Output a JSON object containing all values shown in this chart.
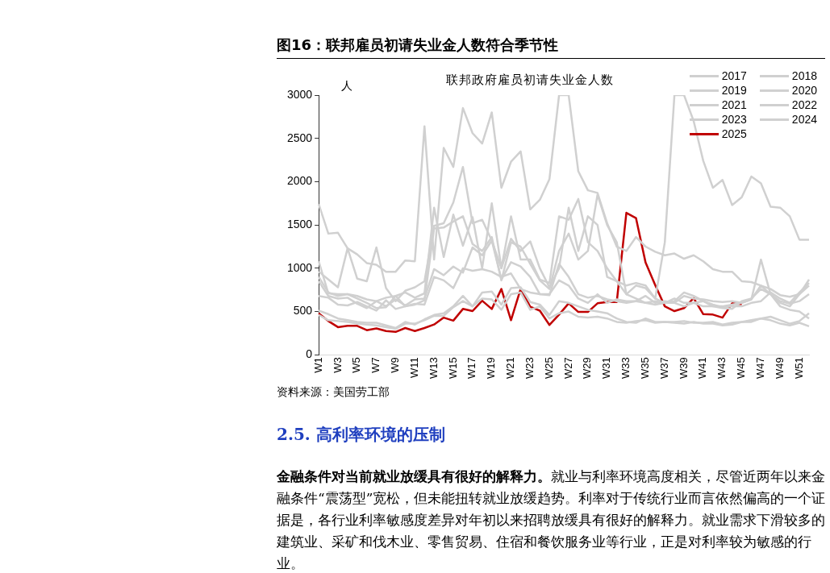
{
  "chart_data": {
    "type": "line",
    "title": "图16：联邦雇员初请失业金人数符合季节性",
    "subtitle": "联邦政府雇员初请失业金人数",
    "ylabel": "人",
    "categories": [
      "W1",
      null,
      "W3",
      null,
      "W5",
      null,
      "W7",
      null,
      "W9",
      null,
      "W11",
      null,
      "W13",
      null,
      "W15",
      null,
      "W17",
      null,
      "W19",
      null,
      "W21",
      null,
      "W23",
      null,
      "W25",
      null,
      "W27",
      null,
      "W29",
      null,
      "W31",
      null,
      "W33",
      null,
      "W35",
      null,
      "W37",
      null,
      "W39",
      null,
      "W41",
      null,
      "W43",
      null,
      "W45",
      null,
      "W47",
      null,
      "W49",
      null,
      "W51",
      null
    ],
    "ylim": [
      0,
      3000
    ],
    "yticks": [
      0,
      500,
      1000,
      1500,
      2000,
      2500,
      3000
    ],
    "grid": false,
    "legend": "top right",
    "marker": "none",
    "line_style": "solid",
    "series": [
      {
        "name": "2017",
        "color": "#d0d0d0",
        "values": [
          1740,
          1400,
          1410,
          1230,
          1160,
          1060,
          1040,
          960,
          960,
          1090,
          1080,
          2640,
          1100,
          2390,
          2170,
          2850,
          2560,
          2440,
          2800,
          1930,
          2230,
          2350,
          1680,
          1790,
          2030,
          3000,
          3000,
          2120,
          1900,
          1870,
          1520,
          1250,
          1200,
          1360,
          1250,
          1190,
          1150,
          1170,
          1110,
          1150,
          1080,
          990,
          960,
          960,
          850,
          840,
          800,
          760,
          690,
          670,
          700,
          800
        ]
      },
      {
        "name": "2018",
        "color": "#d0d0d0",
        "values": [
          1080,
          710,
          700,
          700,
          680,
          640,
          620,
          660,
          680,
          720,
          660,
          710,
          1700,
          1130,
          1620,
          1260,
          1590,
          1000,
          1750,
          1000,
          1600,
          1100,
          1100,
          870,
          830,
          1600,
          1560,
          1800,
          1300,
          1200,
          1000,
          850,
          700,
          800,
          770,
          650,
          1300,
          3000,
          3000,
          2700,
          2240,
          1930,
          2020,
          1730,
          1820,
          2060,
          1980,
          1710,
          1700,
          1600,
          1330,
          1330
        ]
      },
      {
        "name": "2019",
        "color": "#d0d0d0",
        "values": [
          960,
          870,
          780,
          1230,
          880,
          850,
          1240,
          770,
          620,
          740,
          780,
          850,
          1490,
          1520,
          1760,
          2170,
          1520,
          1560,
          1320,
          1000,
          1340,
          1200,
          1310,
          1000,
          780,
          1000,
          1700,
          1200,
          1600,
          1500,
          900,
          850,
          800,
          830,
          800,
          650,
          600,
          650,
          600,
          600,
          620,
          580,
          550,
          560,
          560,
          600,
          620,
          720,
          650,
          600,
          720,
          830
        ]
      },
      {
        "name": "2020",
        "color": "#d0d0d0",
        "values": [
          900,
          720,
          680,
          700,
          650,
          600,
          540,
          550,
          680,
          560,
          580,
          630,
          1460,
          1470,
          1540,
          1600,
          1280,
          1200,
          1360,
          860,
          1300,
          1250,
          1050,
          860,
          760,
          1200,
          1400,
          1100,
          1200,
          1850,
          1500,
          1300,
          700,
          650,
          600,
          620,
          600,
          600,
          560,
          600,
          560,
          560,
          540,
          530,
          620,
          650,
          760,
          700,
          560,
          520,
          500,
          420
        ]
      },
      {
        "name": "2021",
        "color": "#d0d0d0",
        "values": [
          850,
          680,
          650,
          660,
          590,
          540,
          620,
          560,
          640,
          570,
          640,
          650,
          990,
          920,
          1020,
          950,
          1240,
          1150,
          1320,
          870,
          1070,
          1020,
          900,
          700,
          690,
          1050,
          900,
          700,
          660,
          680,
          640,
          620,
          600,
          620,
          680,
          600,
          620,
          600,
          680,
          650,
          640,
          620,
          610,
          620,
          600,
          640,
          1100,
          700,
          620,
          590,
          620,
          700
        ]
      },
      {
        "name": "2022",
        "color": "#d0d0d0",
        "values": [
          680,
          660,
          580,
          570,
          610,
          560,
          510,
          630,
          530,
          560,
          590,
          580,
          900,
          860,
          770,
          1000,
          970,
          990,
          960,
          900,
          940,
          760,
          720,
          700,
          700,
          860,
          800,
          650,
          600,
          700,
          600,
          640,
          620,
          620,
          600,
          580,
          600,
          620,
          720,
          680,
          620,
          560,
          560,
          580,
          600,
          640,
          800,
          700,
          600,
          560,
          700,
          870
        ]
      },
      {
        "name": "2023",
        "color": "#d0d0d0",
        "values": [
          510,
          470,
          420,
          400,
          380,
          370,
          370,
          340,
          310,
          380,
          350,
          410,
          460,
          480,
          560,
          680,
          560,
          720,
          730,
          580,
          770,
          780,
          610,
          580,
          460,
          620,
          600,
          560,
          520,
          500,
          480,
          420,
          380,
          370,
          420,
          380,
          380,
          380,
          390,
          370,
          370,
          380,
          350,
          370,
          380,
          400,
          420,
          440,
          400,
          360,
          390,
          480
        ]
      },
      {
        "name": "2024",
        "color": "#d0d0d0",
        "values": [
          460,
          400,
          390,
          380,
          360,
          350,
          340,
          320,
          300,
          360,
          360,
          400,
          450,
          450,
          550,
          620,
          560,
          650,
          640,
          520,
          700,
          720,
          520,
          560,
          420,
          480,
          500,
          440,
          430,
          440,
          420,
          380,
          370,
          390,
          400,
          370,
          380,
          370,
          360,
          380,
          360,
          360,
          340,
          350,
          380,
          380,
          420,
          400,
          360,
          340,
          370,
          330
        ]
      },
      {
        "name": "2025",
        "color": "#c00000",
        "values": [
          480,
          390,
          320,
          335,
          335,
          285,
          305,
          275,
          265,
          310,
          275,
          310,
          350,
          430,
          395,
          530,
          505,
          625,
          530,
          760,
          400,
          760,
          555,
          510,
          345,
          465,
          595,
          495,
          495,
          595,
          610,
          610,
          1640,
          1580,
          1065,
          805,
          560,
          505,
          540,
          655,
          470,
          465,
          430,
          595,
          585,
          null,
          null,
          null,
          null,
          null,
          null,
          null
        ]
      }
    ],
    "annotations": [
      "资料来源：美国劳工部",
      "2.5.  高利率环境的压制",
      "金融条件对当前就业放缓具有很好的解释力。",
      "就业与利率环境高度相关，尽管近两年以来金融条件“震荡型”宽松，但未能扭转就业放缓趋势。利率对于传统行业而言依然偏高的一个证据是，各行业利率敏感度差异对年初以来招聘放缓具有很好的解释力。就业需求下滑较多的建筑业、采矿和伐木业、零售贸易、住宿和餐饮服务业等行业，正是对利率较为敏感的行业。"
    ]
  }
}
